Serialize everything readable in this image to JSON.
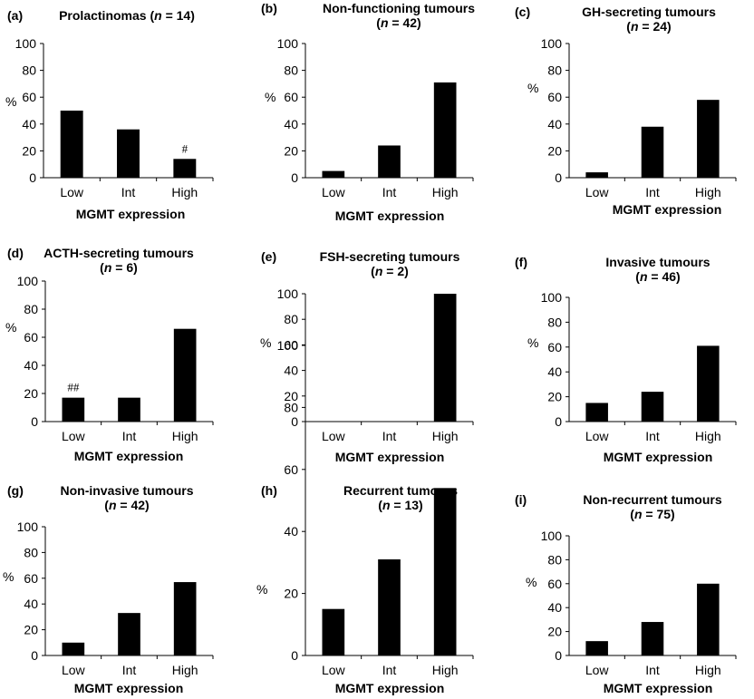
{
  "chart_data": [
    {
      "panel": "(a)",
      "type": "bar",
      "title": "Prolactinomas",
      "n_label": "n",
      "n_value": "= 14",
      "title_lines": 1,
      "categories": [
        "Low",
        "Int",
        "High"
      ],
      "values": [
        50,
        36,
        14
      ],
      "ylabel": "%",
      "xlabel": "MGMT expression",
      "ylim": [
        0,
        100
      ],
      "yticks": [
        "0",
        "20",
        "40",
        "60",
        "80",
        "100"
      ],
      "annotations": [
        {
          "category": "High",
          "text": "#"
        }
      ]
    },
    {
      "panel": "(b)",
      "type": "bar",
      "title": "Non-functioning tumours",
      "n_label": "n",
      "n_value": "= 42",
      "title_lines": 2,
      "categories": [
        "Low",
        "Int",
        "High"
      ],
      "values": [
        5,
        24,
        71
      ],
      "ylabel": "%",
      "xlabel": "MGMT expression",
      "ylim": [
        0,
        100
      ],
      "yticks": [
        "0",
        "20",
        "40",
        "60",
        "80",
        "100"
      ],
      "annotations": []
    },
    {
      "panel": "(c)",
      "type": "bar",
      "title": "GH-secreting tumours",
      "n_label": "n",
      "n_value": "= 24",
      "title_lines": 2,
      "categories": [
        "Low",
        "Int",
        "High"
      ],
      "values": [
        4,
        38,
        58
      ],
      "ylabel": "%",
      "xlabel": "MGMT expression",
      "ylim": [
        0,
        100
      ],
      "yticks": [
        "0",
        "20",
        "40",
        "60",
        "80",
        "100"
      ],
      "annotations": []
    },
    {
      "panel": "(d)",
      "type": "bar",
      "title": "ACTH-secreting tumours",
      "n_label": "n",
      "n_value": "= 6",
      "title_lines": 2,
      "categories": [
        "Low",
        "Int",
        "High"
      ],
      "values": [
        17,
        17,
        66
      ],
      "ylabel": "%",
      "xlabel": "MGMT expression",
      "ylim": [
        0,
        100
      ],
      "yticks": [
        "0",
        "20",
        "40",
        "60",
        "80",
        "100"
      ],
      "annotations": [
        {
          "category": "Low",
          "text": "##"
        }
      ]
    },
    {
      "panel": "(e)",
      "type": "bar",
      "title": "FSH-secreting tumours",
      "n_label": "n",
      "n_value": "= 2",
      "title_lines": 2,
      "categories": [
        "Low",
        "Int",
        "High"
      ],
      "values": [
        0,
        0,
        100
      ],
      "ylabel": "%",
      "xlabel": "MGMT expression",
      "ylim": [
        0,
        100
      ],
      "yticks": [
        "0",
        "20",
        "40",
        "60",
        "80",
        "100"
      ],
      "annotations": []
    },
    {
      "panel": "(f)",
      "type": "bar",
      "title": "Invasive tumours",
      "n_label": "n",
      "n_value": "= 46",
      "title_lines": 2,
      "categories": [
        "Low",
        "Int",
        "High"
      ],
      "values": [
        15,
        24,
        61
      ],
      "ylabel": "%",
      "xlabel": "MGMT expression",
      "ylim": [
        0,
        100
      ],
      "yticks": [
        "0",
        "20",
        "40",
        "60",
        "80",
        "100"
      ],
      "annotations": []
    },
    {
      "panel": "(g)",
      "type": "bar",
      "title": "Non-invasive tumours",
      "n_label": "n",
      "n_value": "= 42",
      "title_lines": 2,
      "categories": [
        "Low",
        "Int",
        "High"
      ],
      "values": [
        10,
        33,
        57
      ],
      "ylabel": "%",
      "xlabel": "MGMT expression",
      "ylim": [
        0,
        100
      ],
      "yticks": [
        "0",
        "20",
        "40",
        "60",
        "80",
        "100"
      ],
      "annotations": []
    },
    {
      "panel": "(h)",
      "type": "bar",
      "title": "Recurrent tumours",
      "n_label": "n",
      "n_value": "= 13",
      "title_lines": 2,
      "categories": [
        "Low",
        "Int",
        "High"
      ],
      "values": [
        15,
        31,
        54
      ],
      "ylabel": "%",
      "xlabel": "MGMT expression",
      "ylim": [
        0,
        100
      ],
      "yticks": [
        "0",
        "20",
        "40",
        "60",
        "80",
        "100"
      ],
      "annotations": []
    },
    {
      "panel": "(i)",
      "type": "bar",
      "title": "Non-recurrent tumours",
      "n_label": "n",
      "n_value": "= 75",
      "title_lines": 2,
      "categories": [
        "Low",
        "Int",
        "High"
      ],
      "values": [
        12,
        28,
        60
      ],
      "ylabel": "%",
      "xlabel": "MGMT expression",
      "ylim": [
        0,
        100
      ],
      "yticks": [
        "0",
        "20",
        "40",
        "60",
        "80",
        "100"
      ],
      "annotations": []
    }
  ]
}
